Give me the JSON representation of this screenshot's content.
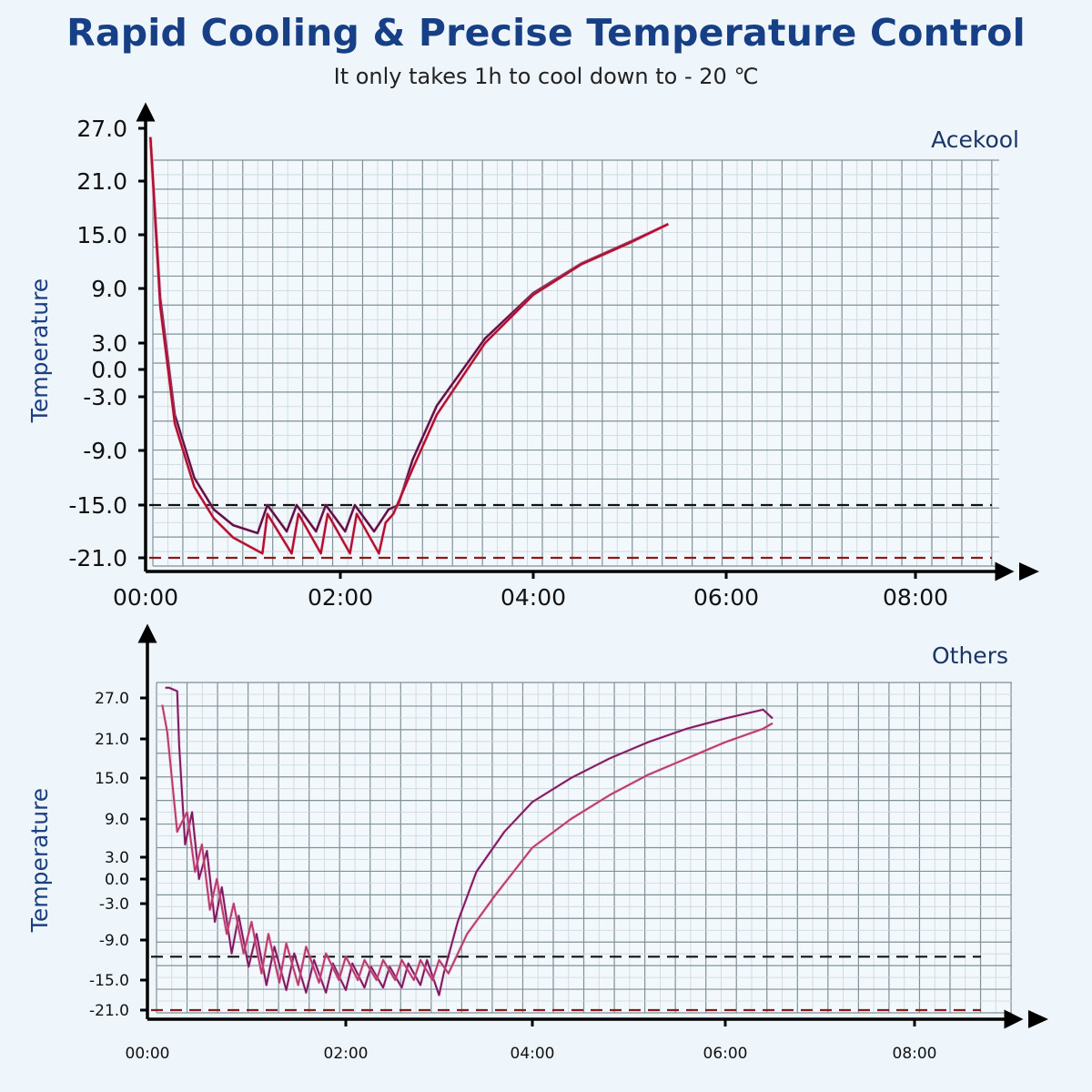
{
  "header": {
    "title": "Rapid Cooling & Precise Temperature Control",
    "subtitle": "It only takes 1h to cool down to - 20 ℃"
  },
  "colors": {
    "title": "#163f86",
    "grid": "#9fb0b8",
    "line_dark": "#5a1148",
    "line_red": "#b0102e",
    "line_magenta": "#7a1a66",
    "line_pink": "#b83a6e",
    "ref_upper": "#111111",
    "ref_lower": "#8a1a1a"
  },
  "chart_data": [
    {
      "type": "line",
      "title": "Acekool",
      "xlabel": "",
      "ylabel": "Temperature",
      "x_unit": "hours",
      "xlim": [
        0,
        9
      ],
      "ylim": [
        -21,
        27
      ],
      "x_tick_labels": [
        "00:00",
        "02:00",
        "04:00",
        "06:00",
        "08:00"
      ],
      "x_ticks": [
        0,
        2,
        4,
        6,
        8
      ],
      "y_tick_labels": [
        "27.0",
        "21.0",
        "15.0",
        "9.0",
        "3.0",
        "0.0",
        "-3.0",
        "-9.0",
        "-15.0",
        "-21.0"
      ],
      "y_ticks": [
        27,
        21,
        15,
        9,
        3,
        0,
        -3,
        -9,
        -15,
        -21
      ],
      "grid": true,
      "legend": "none",
      "reference_lines": [
        {
          "name": "upper-threshold",
          "y": -15,
          "style": "dashed"
        },
        {
          "name": "lower-threshold",
          "y": -21,
          "style": "dashed"
        }
      ],
      "series": [
        {
          "name": "upper-trace",
          "x": [
            0.05,
            0.15,
            0.3,
            0.5,
            0.7,
            0.9,
            1.15,
            1.25,
            1.45,
            1.55,
            1.75,
            1.85,
            2.05,
            2.15,
            2.35,
            2.5,
            2.6,
            2.75,
            3.0,
            3.5,
            4.0,
            4.5,
            5.0,
            5.4
          ],
          "y": [
            26,
            8,
            -5,
            -12,
            -15.5,
            -17.3,
            -18.2,
            -15,
            -18,
            -15,
            -18,
            -15,
            -18,
            -15,
            -18,
            -15.5,
            -15,
            -10,
            -4,
            3.5,
            8.5,
            11.8,
            14.2,
            16.2
          ]
        },
        {
          "name": "lower-trace",
          "x": [
            0.05,
            0.15,
            0.3,
            0.5,
            0.7,
            0.9,
            1.2,
            1.25,
            1.5,
            1.57,
            1.8,
            1.87,
            2.1,
            2.17,
            2.4,
            2.47,
            2.55,
            2.75,
            3.0,
            3.5,
            4.0,
            4.5,
            5.0,
            5.4
          ],
          "y": [
            26,
            7,
            -6,
            -13,
            -16.5,
            -18.7,
            -20.5,
            -16,
            -20.5,
            -16,
            -20.5,
            -16,
            -20.5,
            -16,
            -20.5,
            -17,
            -16,
            -11,
            -5,
            3,
            8.3,
            11.7,
            14.1,
            16.2
          ]
        }
      ]
    },
    {
      "type": "line",
      "title": "Others",
      "xlabel": "",
      "ylabel": "Temperature",
      "x_unit": "hours",
      "xlim": [
        0,
        9
      ],
      "ylim": [
        -21,
        27
      ],
      "x_tick_labels": [
        "00:00",
        "02:00",
        "04:00",
        "06:00",
        "08:00"
      ],
      "x_ticks": [
        0,
        2,
        4,
        6,
        8
      ],
      "y_tick_labels": [
        "27.0",
        "21.0",
        "15.0",
        "9.0",
        "3.0",
        "0.0",
        "-3.0",
        "-9.0",
        "-15.0",
        "-21.0"
      ],
      "y_ticks": [
        27,
        21,
        15,
        9,
        3,
        0,
        -3,
        -9,
        -15,
        -21
      ],
      "grid": true,
      "legend": "none",
      "reference_lines": [
        {
          "name": "upper-threshold",
          "y": -11.5,
          "style": "dashed"
        },
        {
          "name": "lower-threshold",
          "y": -21,
          "style": "dashed"
        }
      ],
      "series": [
        {
          "name": "trace-a",
          "x": [
            0.18,
            0.22,
            0.3,
            0.32,
            0.38,
            0.45,
            0.52,
            0.6,
            0.68,
            0.75,
            0.85,
            0.92,
            1.02,
            1.1,
            1.2,
            1.28,
            1.4,
            1.48,
            1.6,
            1.68,
            1.8,
            1.87,
            2.0,
            2.07,
            2.2,
            2.27,
            2.4,
            2.47,
            2.6,
            2.67,
            2.8,
            2.87,
            3.0,
            3.05,
            3.2,
            3.4,
            3.7,
            4.0,
            4.4,
            4.8,
            5.2,
            5.6,
            6.0,
            6.4,
            6.5
          ],
          "y": [
            28.5,
            28.5,
            28,
            20,
            5,
            10,
            0,
            4,
            -6,
            -1,
            -11,
            -5,
            -13,
            -8,
            -16,
            -10,
            -17,
            -11,
            -17.5,
            -12,
            -17.5,
            -12.5,
            -17,
            -12.5,
            -16.5,
            -13,
            -16.5,
            -13,
            -16.5,
            -12.5,
            -16,
            -12,
            -18,
            -14,
            -6,
            1,
            7,
            11.5,
            15,
            18,
            20.5,
            22.5,
            24,
            25.3,
            24
          ]
        },
        {
          "name": "trace-b",
          "x": [
            0.15,
            0.2,
            0.3,
            0.4,
            0.48,
            0.55,
            0.63,
            0.7,
            0.8,
            0.87,
            0.97,
            1.05,
            1.15,
            1.22,
            1.33,
            1.4,
            1.52,
            1.6,
            1.73,
            1.8,
            1.93,
            2.0,
            2.13,
            2.2,
            2.33,
            2.4,
            2.53,
            2.6,
            2.73,
            2.8,
            2.93,
            3.0,
            3.1,
            3.3,
            3.6,
            4.0,
            4.4,
            4.8,
            5.2,
            5.6,
            6.0,
            6.4,
            6.5
          ],
          "y": [
            26,
            22,
            7,
            10,
            1,
            5,
            -4,
            0,
            -8,
            -3,
            -11,
            -6,
            -14,
            -8,
            -15.5,
            -9.5,
            -16,
            -10,
            -15.5,
            -11,
            -15,
            -11.5,
            -15,
            -12,
            -15,
            -12,
            -15,
            -12,
            -15,
            -12,
            -15,
            -12,
            -14,
            -8,
            -2,
            4.5,
            9,
            12.5,
            15.5,
            18,
            20.5,
            22.5,
            23.3
          ]
        }
      ]
    }
  ]
}
